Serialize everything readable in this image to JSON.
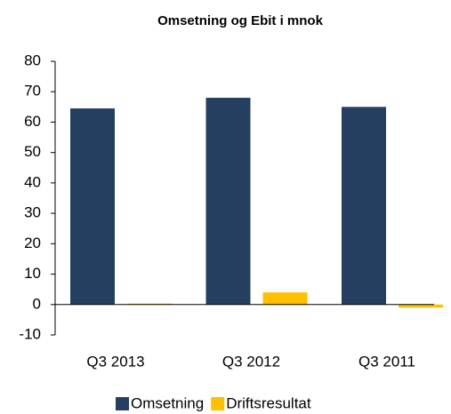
{
  "chart_data": {
    "type": "bar",
    "title": "Omsetning og Ebit i mnok",
    "categories": [
      "Q3 2013",
      "Q3 2012",
      "Q3 2011"
    ],
    "series": [
      {
        "name": "Omsetning",
        "color": "#243f60",
        "values": [
          64.5,
          68,
          65
        ]
      },
      {
        "name": "Driftsresultat",
        "color": "#ffc000",
        "values": [
          0.3,
          4,
          -1
        ]
      }
    ],
    "ylim": [
      -10,
      80
    ],
    "yticks": [
      -10,
      0,
      10,
      20,
      30,
      40,
      50,
      60,
      70,
      80
    ],
    "grid": false,
    "legend": "bottom"
  }
}
